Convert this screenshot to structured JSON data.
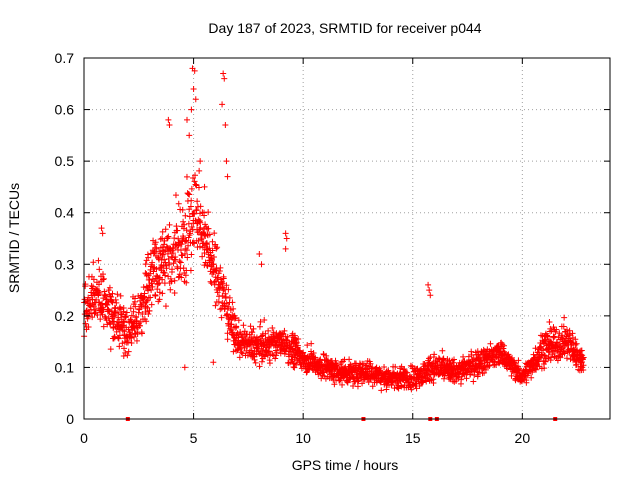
{
  "chart_data": {
    "type": "scatter",
    "title": "Day 187 of 2023, SRMTID for receiver p044",
    "xlabel": "GPS time / hours",
    "ylabel": "SRMTID / TECUs",
    "xlim": [
      0,
      24
    ],
    "ylim": [
      0,
      0.7
    ],
    "xticks": [
      0,
      5,
      10,
      15,
      20
    ],
    "xtick_labels": [
      "0",
      "5",
      "10",
      "15",
      "20"
    ],
    "yticks": [
      0,
      0.1,
      0.2,
      0.3,
      0.4,
      0.5,
      0.6,
      0.7
    ],
    "ytick_labels": [
      "0",
      "0.1",
      "0.2",
      "0.3",
      "0.4",
      "0.5",
      "0.6",
      "0.7"
    ],
    "grid": true,
    "marker": "+",
    "series_color": "#ff0000",
    "grid_color": "#a0a0a0",
    "time_range_hours": [
      0,
      22.8
    ],
    "envelope": [
      {
        "x": 0.0,
        "mean": 0.2,
        "spread": 0.06
      },
      {
        "x": 0.5,
        "mean": 0.24,
        "spread": 0.06
      },
      {
        "x": 1.0,
        "mean": 0.22,
        "spread": 0.07
      },
      {
        "x": 1.5,
        "mean": 0.19,
        "spread": 0.05
      },
      {
        "x": 2.0,
        "mean": 0.17,
        "spread": 0.05
      },
      {
        "x": 2.5,
        "mean": 0.2,
        "spread": 0.07
      },
      {
        "x": 3.0,
        "mean": 0.27,
        "spread": 0.08
      },
      {
        "x": 3.5,
        "mean": 0.3,
        "spread": 0.08
      },
      {
        "x": 4.0,
        "mean": 0.32,
        "spread": 0.09
      },
      {
        "x": 4.5,
        "mean": 0.34,
        "spread": 0.1
      },
      {
        "x": 5.0,
        "mean": 0.4,
        "spread": 0.12
      },
      {
        "x": 5.5,
        "mean": 0.36,
        "spread": 0.08
      },
      {
        "x": 6.0,
        "mean": 0.28,
        "spread": 0.07
      },
      {
        "x": 6.5,
        "mean": 0.22,
        "spread": 0.06
      },
      {
        "x": 7.0,
        "mean": 0.15,
        "spread": 0.04
      },
      {
        "x": 8.0,
        "mean": 0.14,
        "spread": 0.04
      },
      {
        "x": 9.0,
        "mean": 0.15,
        "spread": 0.04
      },
      {
        "x": 10.0,
        "mean": 0.12,
        "spread": 0.03
      },
      {
        "x": 11.0,
        "mean": 0.1,
        "spread": 0.03
      },
      {
        "x": 12.0,
        "mean": 0.09,
        "spread": 0.025
      },
      {
        "x": 13.0,
        "mean": 0.09,
        "spread": 0.025
      },
      {
        "x": 14.0,
        "mean": 0.08,
        "spread": 0.025
      },
      {
        "x": 15.0,
        "mean": 0.08,
        "spread": 0.025
      },
      {
        "x": 16.0,
        "mean": 0.1,
        "spread": 0.03
      },
      {
        "x": 17.0,
        "mean": 0.09,
        "spread": 0.025
      },
      {
        "x": 18.0,
        "mean": 0.11,
        "spread": 0.03
      },
      {
        "x": 19.0,
        "mean": 0.13,
        "spread": 0.03
      },
      {
        "x": 20.0,
        "mean": 0.08,
        "spread": 0.02
      },
      {
        "x": 21.0,
        "mean": 0.14,
        "spread": 0.04
      },
      {
        "x": 22.0,
        "mean": 0.15,
        "spread": 0.04
      },
      {
        "x": 22.8,
        "mean": 0.11,
        "spread": 0.03
      }
    ],
    "highlights": [
      {
        "x": 4.95,
        "y": 0.68
      },
      {
        "x": 5.05,
        "y": 0.675
      },
      {
        "x": 5.0,
        "y": 0.64
      },
      {
        "x": 5.1,
        "y": 0.62
      },
      {
        "x": 4.9,
        "y": 0.6
      },
      {
        "x": 6.35,
        "y": 0.67
      },
      {
        "x": 6.4,
        "y": 0.66
      },
      {
        "x": 6.3,
        "y": 0.61
      },
      {
        "x": 6.45,
        "y": 0.57
      },
      {
        "x": 3.85,
        "y": 0.58
      },
      {
        "x": 3.9,
        "y": 0.57
      },
      {
        "x": 4.7,
        "y": 0.58
      },
      {
        "x": 4.8,
        "y": 0.55
      },
      {
        "x": 5.3,
        "y": 0.5
      },
      {
        "x": 5.5,
        "y": 0.45
      },
      {
        "x": 6.5,
        "y": 0.5
      },
      {
        "x": 6.55,
        "y": 0.47
      },
      {
        "x": 9.2,
        "y": 0.36
      },
      {
        "x": 9.25,
        "y": 0.35
      },
      {
        "x": 9.2,
        "y": 0.33
      },
      {
        "x": 15.7,
        "y": 0.26
      },
      {
        "x": 15.75,
        "y": 0.25
      },
      {
        "x": 15.8,
        "y": 0.24
      },
      {
        "x": 0.8,
        "y": 0.37
      },
      {
        "x": 0.85,
        "y": 0.36
      },
      {
        "x": 8.0,
        "y": 0.32
      },
      {
        "x": 8.1,
        "y": 0.3
      },
      {
        "x": 4.6,
        "y": 0.1
      },
      {
        "x": 5.9,
        "y": 0.11
      }
    ],
    "zero_markers": [
      2.0,
      12.75,
      15.8,
      16.1,
      21.5
    ]
  }
}
